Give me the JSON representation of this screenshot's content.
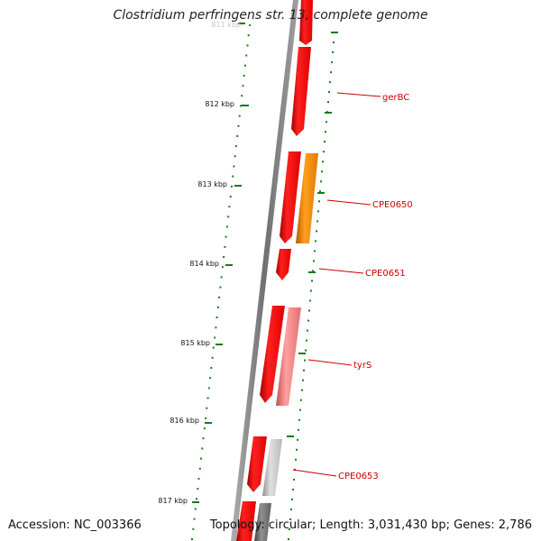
{
  "title": "Clostridium perfringens str. 13, complete genome",
  "accession_label": "Accession: NC_003366",
  "summary_label": "Topology: circular; Length: 3,031,430 bp; Genes: 2,786",
  "ticks": [
    {
      "label": "811 kbp"
    },
    {
      "label": "812 kbp"
    },
    {
      "label": "813 kbp"
    },
    {
      "label": "814 kbp"
    },
    {
      "label": "815 kbp"
    },
    {
      "label": "816 kbp"
    },
    {
      "label": "817 kbp"
    }
  ],
  "genes": [
    {
      "label": "gerBC"
    },
    {
      "label": "CPE0650"
    },
    {
      "label": "CPE0651"
    },
    {
      "label": "tyrS"
    },
    {
      "label": "CPE0653"
    }
  ],
  "colors": {
    "gene_red": "#ff0000",
    "gene_orange": "#ff8c00",
    "gene_pink": "#f08080",
    "gene_gray": "#c8c8c8",
    "backbone": "#808080",
    "tick_green": "#1a7a1a",
    "label_red": "#cc0000"
  }
}
